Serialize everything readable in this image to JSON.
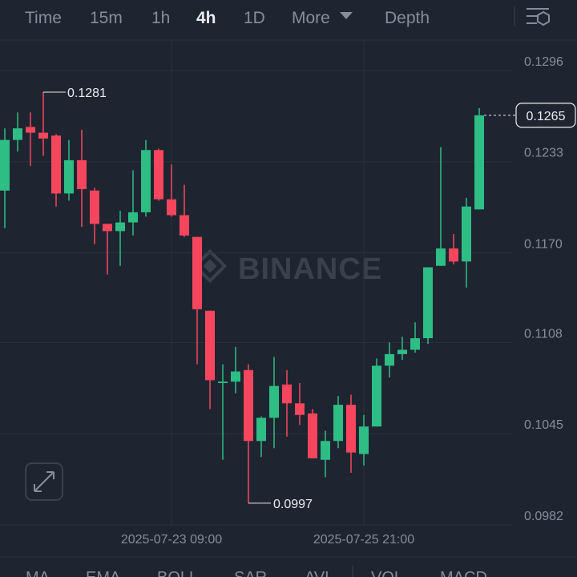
{
  "tabs": {
    "items": [
      "Time",
      "15m",
      "1h",
      "4h",
      "1D",
      "More",
      "Depth"
    ],
    "active": 3
  },
  "chart_data": {
    "type": "candlestick",
    "categories": [
      null,
      null,
      null,
      null,
      null,
      null,
      null,
      null,
      null,
      null,
      null,
      null,
      null,
      "2025-07-23 09:00",
      null,
      null,
      null,
      null,
      null,
      null,
      null,
      null,
      null,
      null,
      null,
      null,
      null,
      null,
      "2025-07-25 21:00",
      null,
      null,
      null,
      null,
      null,
      null,
      null,
      null,
      null
    ],
    "open": [
      0.1213,
      0.1248,
      0.1257,
      0.1253,
      0.1251,
      0.1211,
      0.1234,
      0.1213,
      0.119,
      0.1185,
      0.1191,
      0.1198,
      0.1241,
      0.1207,
      0.1196,
      0.1181,
      0.113,
      0.108,
      0.1081,
      0.1089,
      0.104,
      0.1056,
      0.1079,
      0.1066,
      0.1059,
      0.1027,
      0.104,
      0.1065,
      0.1031,
      0.105,
      0.1092,
      0.11,
      0.1103,
      0.1111,
      0.1161,
      0.1173,
      0.1164,
      0.12
    ],
    "high": [
      0.1256,
      0.1267,
      0.1267,
      0.1281,
      0.1252,
      0.1248,
      0.1255,
      0.1215,
      0.119,
      0.1199,
      0.1227,
      0.1248,
      0.1242,
      0.1231,
      0.1217,
      0.1181,
      0.113,
      0.1093,
      0.1105,
      0.1093,
      0.1057,
      0.1098,
      0.1089,
      0.108,
      0.1062,
      0.1047,
      0.1071,
      0.1072,
      0.1058,
      0.1097,
      0.1108,
      0.1112,
      0.1122,
      0.116,
      0.1243,
      0.1183,
      0.1208,
      0.127
    ],
    "low": [
      0.1187,
      0.124,
      0.123,
      0.1237,
      0.1202,
      0.1206,
      0.1188,
      0.1176,
      0.1155,
      0.1161,
      0.1182,
      0.1195,
      0.1206,
      0.1195,
      0.1181,
      0.1093,
      0.1062,
      0.1027,
      0.1073,
      0.0997,
      0.1029,
      0.1035,
      0.1043,
      0.1051,
      0.1028,
      0.1015,
      0.1035,
      0.1018,
      0.1023,
      0.105,
      0.1084,
      0.1096,
      0.1101,
      0.1107,
      0.1161,
      0.1162,
      0.1146,
      0.12
    ],
    "close": [
      0.1248,
      0.1256,
      0.1253,
      0.1249,
      0.1211,
      0.1234,
      0.1214,
      0.119,
      0.1185,
      0.1191,
      0.1198,
      0.1241,
      0.1207,
      0.1196,
      0.1182,
      0.1131,
      0.1082,
      0.1081,
      0.1088,
      0.104,
      0.1056,
      0.1078,
      0.1066,
      0.1058,
      0.1028,
      0.104,
      0.1065,
      0.1032,
      0.105,
      0.1092,
      0.11,
      0.1103,
      0.1111,
      0.116,
      0.1173,
      0.1164,
      0.1202,
      0.1265
    ],
    "up_color": "#2ebd85",
    "down_color": "#f6465d",
    "ylim": [
      0.0982,
      0.1317
    ],
    "yticks": [
      0.0982,
      0.1045,
      0.1108,
      {
        "value": 0.117,
        "label": "0.1170"
      },
      0.1233,
      0.1296
    ],
    "grid": true,
    "watermark": "BINANCE"
  },
  "indicators": [
    "MA",
    "EMA",
    "BOLL",
    "SAR",
    "AVL",
    "VOL",
    "MACD"
  ]
}
